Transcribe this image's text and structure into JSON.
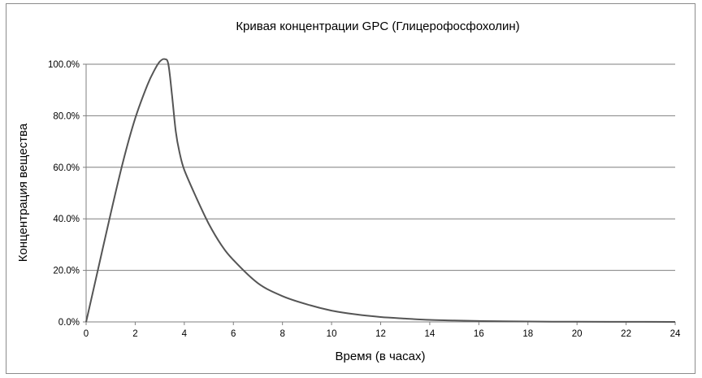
{
  "chart_data": {
    "type": "line",
    "title": "Кривая концентрации GPC (Глицерофосфохолин)",
    "xlabel": "Время (в часах)",
    "ylabel": "Концентрация вещества",
    "xlim": [
      0,
      24
    ],
    "ylim": [
      0,
      100
    ],
    "x_ticks": [
      "0",
      "2",
      "4",
      "6",
      "8",
      "10",
      "12",
      "14",
      "16",
      "18",
      "20",
      "22",
      "24"
    ],
    "y_ticks": [
      "0.0%",
      "20.0%",
      "40.0%",
      "60.0%",
      "80.0%",
      "100.0%"
    ],
    "grid": "horizontal",
    "legend": "none",
    "line_color": "#555555",
    "series": [
      {
        "x": [
          0,
          0.5,
          1,
          1.5,
          2,
          2.5,
          2.8,
          3.0,
          3.2,
          3.35,
          3.5,
          3.65,
          3.8,
          4,
          4.5,
          5,
          5.5,
          6,
          7,
          8,
          9,
          10,
          11,
          12,
          13,
          14,
          15,
          16,
          17,
          18,
          19,
          20,
          22,
          24
        ],
        "y": [
          0,
          21,
          42,
          62,
          79,
          92,
          98,
          101,
          102,
          100,
          88,
          74,
          66,
          59,
          48,
          38,
          30,
          24,
          15,
          10,
          6.8,
          4.4,
          2.9,
          1.9,
          1.3,
          0.8,
          0.55,
          0.35,
          0.24,
          0.16,
          0.1,
          0.07,
          0.03,
          0.01
        ]
      }
    ]
  }
}
